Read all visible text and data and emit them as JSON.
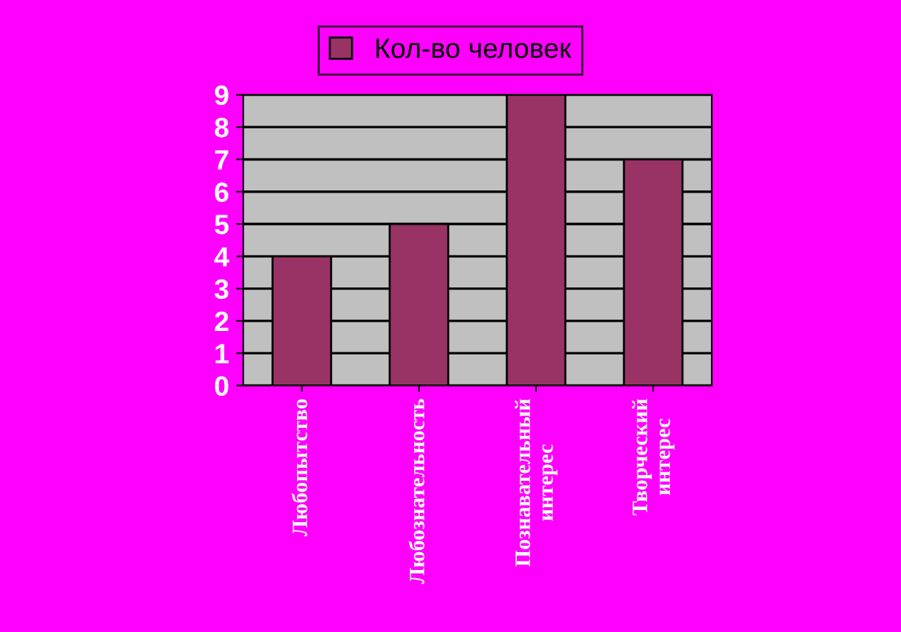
{
  "chart_data": {
    "type": "bar",
    "categories": [
      "Любопытство",
      "Любознательность",
      "Познавательный\nинтерес",
      "Творческий\nинтерес"
    ],
    "series": [
      {
        "name": "Кол-во человек",
        "color": "#993366",
        "values": [
          4,
          5,
          9,
          7
        ]
      }
    ],
    "ylim": [
      0,
      9
    ],
    "yticks": [
      0,
      1,
      2,
      3,
      4,
      5,
      6,
      7,
      8,
      9
    ],
    "grid": "y",
    "legend": "top"
  }
}
